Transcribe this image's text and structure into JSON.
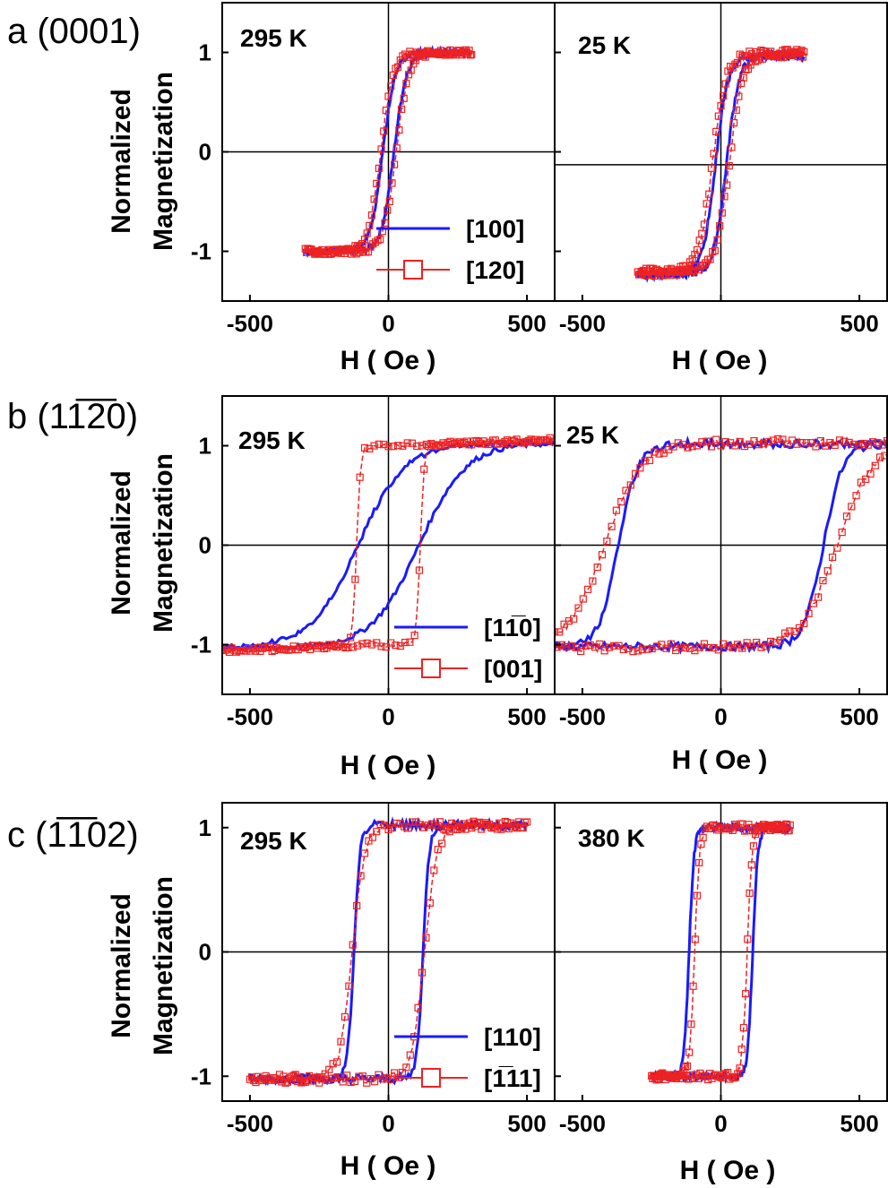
{
  "figure": {
    "ylabel_line1": "Normalized",
    "ylabel_line2": "Magnetization",
    "xlabel": "H ( Oe )"
  },
  "rows": [
    {
      "label": "a (0001)"
    },
    {
      "label": "b (11̅2̅0)"
    },
    {
      "label": "c (1̅1̅02)"
    }
  ],
  "chart_data": [
    {
      "type": "line",
      "row": 0,
      "panel": "a-left",
      "annotation": "295 K",
      "xlim": [
        -600,
        600
      ],
      "ylim": [
        -1.5,
        1.5
      ],
      "xticks": [
        -500,
        0,
        500
      ],
      "xticklabels": [
        "-500",
        "0",
        "500"
      ],
      "yticks": [
        -1,
        0,
        1
      ],
      "yticklabels": [
        "-1",
        "0",
        "1"
      ],
      "legend": [
        "[100]",
        "[120]"
      ],
      "series": [
        {
          "name": "[100]",
          "color": "#1a1aff",
          "style": "line",
          "hc": 20,
          "w": 45,
          "sat": 1.0,
          "xrange": [
            -300,
            300
          ],
          "noise": 0.03
        },
        {
          "name": "[120]",
          "color": "#ee2222",
          "style": "square",
          "hc": 28,
          "w": 45,
          "sat": 1.0,
          "xrange": [
            -300,
            300
          ],
          "noise": 0.03
        }
      ]
    },
    {
      "type": "line",
      "row": 0,
      "panel": "a-right",
      "annotation": "25 K",
      "xlim": [
        -600,
        600
      ],
      "ylim": [
        -1.5,
        1.5
      ],
      "xticks": [
        -500,
        0,
        500
      ],
      "xticklabels": [
        "-500",
        "",
        "500"
      ],
      "yticks": [
        -1,
        0,
        1
      ],
      "yticklabels": [],
      "hline": -0.13,
      "series": [
        {
          "name": "[100]",
          "color": "#1a1aff",
          "style": "line",
          "hc": 20,
          "w": 45,
          "sat": 1.1,
          "off": -0.13,
          "xrange": [
            -300,
            300
          ],
          "noise": 0.04
        },
        {
          "name": "[120]",
          "color": "#ee2222",
          "style": "square",
          "hc": 30,
          "w": 50,
          "sat": 1.1,
          "off": -0.11,
          "xrange": [
            -300,
            300
          ],
          "noise": 0.04
        }
      ]
    },
    {
      "type": "line",
      "row": 1,
      "panel": "b-left",
      "annotation": "295 K",
      "xlim": [
        -600,
        600
      ],
      "ylim": [
        -1.5,
        1.5
      ],
      "xticks": [
        -500,
        0,
        500
      ],
      "xticklabels": [
        "-500",
        "0",
        "500"
      ],
      "yticks": [
        -1,
        0,
        1
      ],
      "yticklabels": [
        "-1",
        "0",
        "1"
      ],
      "legend": [
        "[11̅0]",
        "[001]"
      ],
      "series": [
        {
          "name": "[11̅0]",
          "color": "#1a1aff",
          "style": "line",
          "hc": 110,
          "w": 170,
          "sat": 1.03,
          "xrange": [
            -600,
            600
          ],
          "noise": 0.025
        },
        {
          "name": "[001]",
          "color": "#ee2222",
          "style": "square",
          "hc": 115,
          "w": 14,
          "sat": 1.0,
          "slope": 0.0001,
          "xrange": [
            -600,
            600
          ],
          "noise": 0.025
        }
      ]
    },
    {
      "type": "line",
      "row": 1,
      "panel": "b-right",
      "annotation": "25 K",
      "xlim": [
        -600,
        600
      ],
      "ylim": [
        -1.5,
        1.5
      ],
      "xticks": [
        -500,
        0,
        500
      ],
      "xticklabels": [
        "-500",
        "0",
        "500"
      ],
      "yticks": [
        -1,
        0,
        1
      ],
      "yticklabels": [],
      "series": [
        {
          "name": "[11̅0]",
          "color": "#1a1aff",
          "style": "line",
          "hc": 370,
          "w": 70,
          "sat": 1.02,
          "xrange": [
            -600,
            600
          ],
          "noise": 0.04
        },
        {
          "name": "[001]",
          "color": "#ee2222",
          "style": "square",
          "hc": 420,
          "w": 130,
          "sat": 1.03,
          "xrange": [
            -600,
            600
          ],
          "noise": 0.04
        }
      ]
    },
    {
      "type": "line",
      "row": 2,
      "panel": "c-left",
      "annotation": "295 K",
      "xlim": [
        -600,
        600
      ],
      "ylim": [
        -1.2,
        1.2
      ],
      "xticks": [
        -500,
        0,
        500
      ],
      "xticklabels": [
        "-500",
        "0",
        "500"
      ],
      "yticks": [
        -1,
        0,
        1
      ],
      "yticklabels": [
        "-1",
        "0",
        "1"
      ],
      "legend": [
        "[110]",
        "[1̅11]"
      ],
      "series": [
        {
          "name": "[110]",
          "color": "#1a1aff",
          "style": "line",
          "hc": 125,
          "w": 22,
          "sat": 1.02,
          "xrange": [
            -500,
            500
          ],
          "noise": 0.035
        },
        {
          "name": "[1̅11]",
          "color": "#ee2222",
          "style": "square",
          "hc": 130,
          "w": 45,
          "sat": 1.02,
          "xrange": [
            -500,
            500
          ],
          "noise": 0.035
        }
      ]
    },
    {
      "type": "line",
      "row": 2,
      "panel": "c-right",
      "annotation": "380 K",
      "xlim": [
        -600,
        600
      ],
      "ylim": [
        -1.2,
        1.2
      ],
      "xticks": [
        -500,
        0,
        500
      ],
      "xticklabels": [
        "-500",
        "0",
        "500"
      ],
      "yticks": [
        -1,
        0,
        1
      ],
      "yticklabels": [],
      "series": [
        {
          "name": "[110]",
          "color": "#1a1aff",
          "style": "line",
          "hc": 115,
          "w": 18,
          "sat": 1.0,
          "xrange": [
            -250,
            250
          ],
          "noise": 0.03
        },
        {
          "name": "[1̅11]",
          "color": "#ee2222",
          "style": "square",
          "hc": 95,
          "w": 18,
          "sat": 1.0,
          "xrange": [
            -250,
            250
          ],
          "noise": 0.03
        }
      ]
    }
  ]
}
